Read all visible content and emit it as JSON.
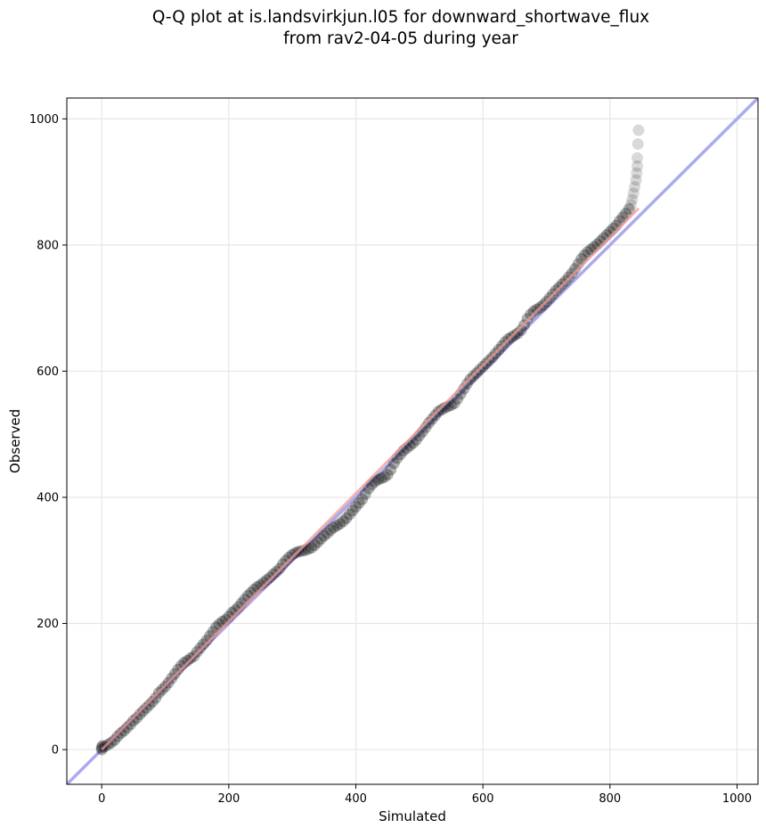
{
  "chart_data": {
    "type": "scatter",
    "title_line1": "Q-Q plot at is.landsvirkjun.l05 for downward_shortwave_flux",
    "title_line2": "from rav2-04-05 during year",
    "xlabel": "Simulated",
    "ylabel": "Observed",
    "xlim": [
      -55,
      1033
    ],
    "ylim": [
      -55,
      1033
    ],
    "xticks": [
      0,
      200,
      400,
      600,
      800,
      1000
    ],
    "yticks": [
      0,
      200,
      400,
      600,
      800,
      1000
    ],
    "grid": true,
    "colors": {
      "points": "#000000",
      "identity_line": "#aaaaf0",
      "fit_line": "#f09a9a"
    },
    "identity_line": {
      "x": [
        -55,
        1033
      ],
      "y": [
        -55,
        1033
      ]
    },
    "fit_line": {
      "x": [
        0,
        845
      ],
      "y": [
        0,
        858
      ]
    },
    "series": [
      {
        "quantiles": [
          [
            0,
            0
          ],
          [
            0,
            3
          ],
          [
            1,
            6
          ],
          [
            5,
            5
          ],
          [
            10,
            8
          ],
          [
            15,
            11
          ],
          [
            20,
            15
          ],
          [
            25,
            21
          ],
          [
            30,
            26
          ],
          [
            35,
            30
          ],
          [
            40,
            35
          ],
          [
            45,
            40
          ],
          [
            50,
            46
          ],
          [
            55,
            50
          ],
          [
            60,
            56
          ],
          [
            65,
            61
          ],
          [
            70,
            66
          ],
          [
            75,
            71
          ],
          [
            80,
            76
          ],
          [
            85,
            82
          ],
          [
            90,
            90
          ],
          [
            95,
            95
          ],
          [
            100,
            100
          ],
          [
            105,
            106
          ],
          [
            110,
            113
          ],
          [
            115,
            120
          ],
          [
            120,
            127
          ],
          [
            125,
            133
          ],
          [
            130,
            138
          ],
          [
            135,
            141
          ],
          [
            140,
            145
          ],
          [
            145,
            148
          ],
          [
            150,
            155
          ],
          [
            155,
            161
          ],
          [
            160,
            167
          ],
          [
            165,
            173
          ],
          [
            170,
            180
          ],
          [
            175,
            187
          ],
          [
            180,
            194
          ],
          [
            185,
            199
          ],
          [
            190,
            203
          ],
          [
            195,
            206
          ],
          [
            200,
            211
          ],
          [
            205,
            217
          ],
          [
            210,
            221
          ],
          [
            215,
            226
          ],
          [
            220,
            232
          ],
          [
            225,
            238
          ],
          [
            230,
            244
          ],
          [
            235,
            249
          ],
          [
            240,
            254
          ],
          [
            245,
            258
          ],
          [
            250,
            261
          ],
          [
            255,
            265
          ],
          [
            260,
            269
          ],
          [
            265,
            273
          ],
          [
            270,
            278
          ],
          [
            275,
            282
          ],
          [
            280,
            287
          ],
          [
            285,
            294
          ],
          [
            290,
            300
          ],
          [
            295,
            305
          ],
          [
            300,
            309
          ],
          [
            305,
            312
          ],
          [
            310,
            314
          ],
          [
            315,
            315
          ],
          [
            320,
            316
          ],
          [
            325,
            318
          ],
          [
            330,
            320
          ],
          [
            335,
            324
          ],
          [
            340,
            329
          ],
          [
            345,
            334
          ],
          [
            350,
            339
          ],
          [
            355,
            343
          ],
          [
            360,
            348
          ],
          [
            365,
            352
          ],
          [
            370,
            355
          ],
          [
            375,
            358
          ],
          [
            380,
            362
          ],
          [
            385,
            367
          ],
          [
            390,
            373
          ],
          [
            395,
            379
          ],
          [
            400,
            385
          ],
          [
            405,
            391
          ],
          [
            410,
            397
          ],
          [
            415,
            405
          ],
          [
            420,
            414
          ],
          [
            425,
            420
          ],
          [
            430,
            425
          ],
          [
            435,
            428
          ],
          [
            440,
            430
          ],
          [
            445,
            432
          ],
          [
            450,
            436
          ],
          [
            455,
            444
          ],
          [
            460,
            454
          ],
          [
            465,
            462
          ],
          [
            470,
            468
          ],
          [
            475,
            474
          ],
          [
            480,
            478
          ],
          [
            485,
            482
          ],
          [
            490,
            486
          ],
          [
            495,
            491
          ],
          [
            500,
            498
          ],
          [
            505,
            504
          ],
          [
            510,
            511
          ],
          [
            515,
            518
          ],
          [
            520,
            524
          ],
          [
            525,
            530
          ],
          [
            530,
            536
          ],
          [
            535,
            539
          ],
          [
            540,
            542
          ],
          [
            545,
            544
          ],
          [
            550,
            546
          ],
          [
            555,
            549
          ],
          [
            560,
            556
          ],
          [
            565,
            564
          ],
          [
            570,
            572
          ],
          [
            575,
            580
          ],
          [
            580,
            587
          ],
          [
            585,
            592
          ],
          [
            590,
            597
          ],
          [
            595,
            602
          ],
          [
            600,
            607
          ],
          [
            605,
            612
          ],
          [
            610,
            617
          ],
          [
            615,
            622
          ],
          [
            620,
            628
          ],
          [
            625,
            634
          ],
          [
            630,
            640
          ],
          [
            635,
            646
          ],
          [
            640,
            651
          ],
          [
            645,
            654
          ],
          [
            650,
            657
          ],
          [
            655,
            660
          ],
          [
            660,
            665
          ],
          [
            665,
            673
          ],
          [
            670,
            683
          ],
          [
            675,
            690
          ],
          [
            680,
            695
          ],
          [
            685,
            698
          ],
          [
            690,
            701
          ],
          [
            695,
            705
          ],
          [
            700,
            710
          ],
          [
            705,
            716
          ],
          [
            710,
            722
          ],
          [
            715,
            728
          ],
          [
            720,
            733
          ],
          [
            725,
            738
          ],
          [
            730,
            743
          ],
          [
            735,
            749
          ],
          [
            740,
            755
          ],
          [
            745,
            762
          ],
          [
            750,
            770
          ],
          [
            755,
            778
          ],
          [
            760,
            784
          ],
          [
            765,
            789
          ],
          [
            770,
            793
          ],
          [
            775,
            797
          ],
          [
            780,
            801
          ],
          [
            785,
            806
          ],
          [
            790,
            811
          ],
          [
            795,
            816
          ],
          [
            800,
            821
          ],
          [
            805,
            826
          ],
          [
            810,
            831
          ],
          [
            815,
            838
          ],
          [
            820,
            844
          ],
          [
            825,
            850
          ],
          [
            830,
            857
          ],
          [
            833,
            864
          ],
          [
            835,
            872
          ],
          [
            837,
            882
          ],
          [
            839,
            892
          ],
          [
            841,
            903
          ],
          [
            842,
            914
          ],
          [
            843,
            925
          ],
          [
            843,
            938
          ],
          [
            844,
            960
          ],
          [
            845,
            982
          ]
        ]
      }
    ]
  }
}
